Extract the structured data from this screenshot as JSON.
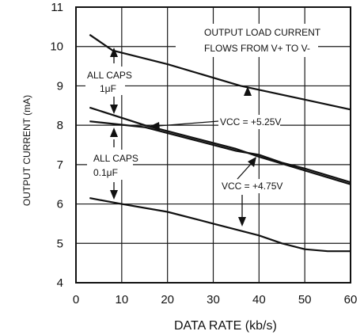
{
  "chart_data": {
    "type": "line",
    "xlabel": "DATA RATE (kb/s)",
    "ylabel": "OUTPUT CURRENT (mA)",
    "xlim": [
      0,
      60
    ],
    "ylim": [
      4,
      11
    ],
    "xticks": [
      0,
      10,
      20,
      30,
      40,
      50,
      60
    ],
    "yticks": [
      4,
      5,
      6,
      7,
      8,
      9,
      10,
      11
    ],
    "grid": true,
    "series": [
      {
        "x": [
          3,
          8,
          20,
          36,
          50,
          60
        ],
        "y": [
          10.3,
          9.9,
          9.55,
          9.0,
          8.65,
          8.4
        ]
      },
      {
        "x": [
          3,
          15,
          25,
          35,
          40,
          50,
          60
        ],
        "y": [
          8.45,
          8.0,
          7.7,
          7.4,
          7.2,
          6.85,
          6.5
        ]
      },
      {
        "x": [
          3,
          15,
          25,
          35,
          40,
          45,
          50,
          60
        ],
        "y": [
          8.1,
          7.95,
          7.65,
          7.35,
          7.25,
          7.05,
          6.9,
          6.55
        ]
      },
      {
        "x": [
          3,
          10,
          20,
          30,
          40,
          45,
          50,
          55,
          60
        ],
        "y": [
          6.15,
          6.0,
          5.8,
          5.5,
          5.2,
          5.0,
          4.85,
          4.8,
          4.8
        ]
      }
    ],
    "annotations": [
      {
        "text": "OUTPUT LOAD CURRENT"
      },
      {
        "text": "FLOWS FROM V+ TO V-"
      },
      {
        "text": "ALL CAPS"
      },
      {
        "text": "1μF"
      },
      {
        "text": "ALL CAPS"
      },
      {
        "text": "0.1μF"
      },
      {
        "text": "VCC = +5.25V"
      },
      {
        "text": "VCC = +4.75V"
      }
    ]
  }
}
